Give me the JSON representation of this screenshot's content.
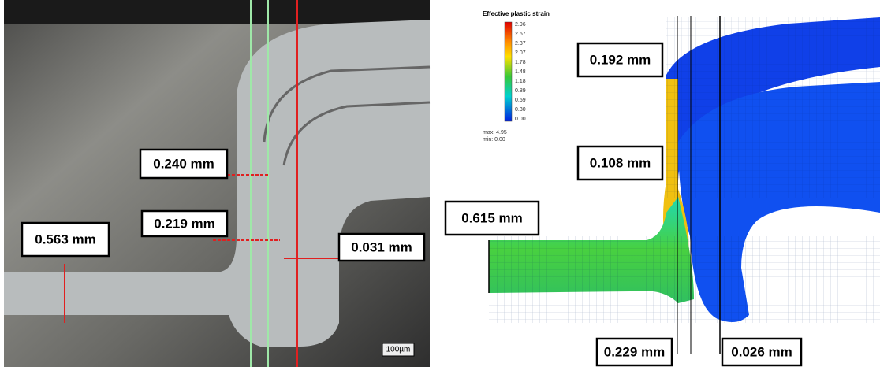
{
  "left_panel": {
    "annotations": [
      "0.240 mm",
      "0.219 mm",
      "0.563 mm",
      "0.031 mm"
    ],
    "scale_bar": "100µm"
  },
  "right_panel": {
    "legend": {
      "title": "Effective plastic strain",
      "ticks": [
        "2.96",
        "2.67",
        "2.37",
        "2.07",
        "1.78",
        "1.48",
        "1.18",
        "0.89",
        "0.59",
        "0.30",
        "0.00"
      ],
      "max": "max: 4.95",
      "min": "min: 0.00"
    },
    "annotations": [
      "0.192 mm",
      "0.108 mm",
      "0.615 mm",
      "0.229 mm",
      "0.026 mm"
    ]
  }
}
